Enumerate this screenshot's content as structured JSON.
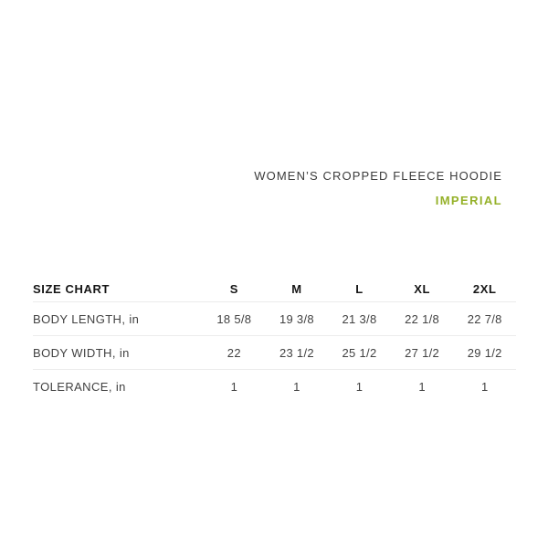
{
  "header": {
    "product_title": "WOMEN’S CROPPED FLEECE HOODIE",
    "unit_label": "IMPERIAL"
  },
  "colors": {
    "accent_green": "#95b129",
    "divider": "#ececec",
    "heading_text": "#161616",
    "body_text": "#414141"
  },
  "table": {
    "header_label": "SIZE CHART",
    "columns": [
      "S",
      "M",
      "L",
      "XL",
      "2XL"
    ],
    "rows": [
      {
        "label": "BODY LENGTH, in",
        "values": [
          "18 5/8",
          "19 3/8",
          "21 3/8",
          "22 1/8",
          "22 7/8"
        ]
      },
      {
        "label": "BODY WIDTH, in",
        "values": [
          "22",
          "23 1/2",
          "25 1/2",
          "27 1/2",
          "29 1/2"
        ]
      },
      {
        "label": "TOLERANCE, in",
        "values": [
          "1",
          "1",
          "1",
          "1",
          "1"
        ]
      }
    ]
  },
  "chart_data": {
    "type": "table",
    "title": "SIZE CHART",
    "categories": [
      "S",
      "M",
      "L",
      "XL",
      "2XL"
    ],
    "series": [
      {
        "name": "BODY LENGTH, in",
        "values": [
          18.625,
          19.375,
          21.375,
          22.125,
          22.875
        ]
      },
      {
        "name": "BODY WIDTH, in",
        "values": [
          22,
          23.5,
          25.5,
          27.5,
          29.5
        ]
      },
      {
        "name": "TOLERANCE, in",
        "values": [
          1,
          1,
          1,
          1,
          1
        ]
      }
    ]
  }
}
